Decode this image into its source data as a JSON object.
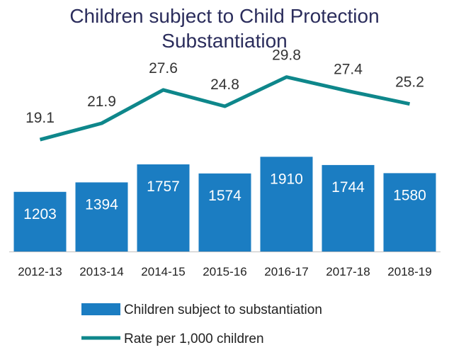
{
  "chart_data": {
    "type": "bar",
    "title": "Children subject to Child Protection Substantiation",
    "title_lines": [
      "Children subject to Child Protection",
      "Substantiation"
    ],
    "categories": [
      "2012-13",
      "2013-14",
      "2014-15",
      "2015-16",
      "2016-17",
      "2017-18",
      "2018-19"
    ],
    "series": [
      {
        "name": "Children subject to substantiation",
        "type": "bar",
        "values": [
          1203,
          1394,
          1757,
          1574,
          1910,
          1744,
          1580
        ],
        "color": "#1B7DC2"
      },
      {
        "name": "Rate per 1,000 children",
        "type": "line",
        "values": [
          19.1,
          21.9,
          27.6,
          24.8,
          29.8,
          27.4,
          25.2
        ],
        "color": "#0E878B"
      }
    ],
    "bar_ylim": [
      0,
      2150
    ],
    "line_ylim": [
      0,
      34
    ],
    "legend_position": "bottom",
    "grid": false,
    "xlabel": "",
    "ylabel": ""
  }
}
